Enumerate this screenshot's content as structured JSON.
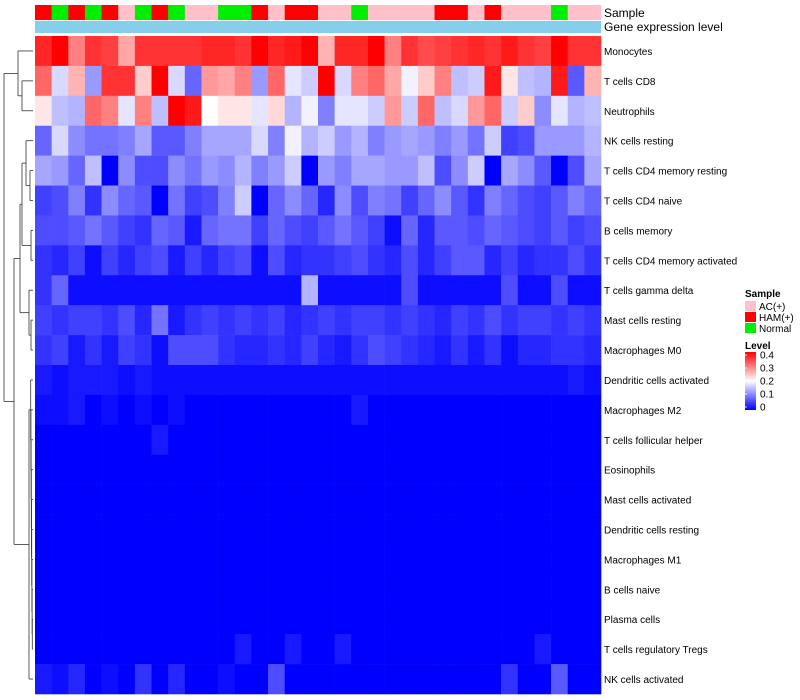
{
  "chart_data": {
    "type": "heatmap",
    "annotation_rows": [
      "Sample",
      "Gene expression level"
    ],
    "sample_groups": [
      "HAM(+)",
      "Normal",
      "HAM(+)",
      "Normal",
      "HAM(+)",
      "AC(+)",
      "Normal",
      "HAM(+)",
      "Normal",
      "AC(+)",
      "AC(+)",
      "Normal",
      "Normal",
      "HAM(+)",
      "AC(+)",
      "HAM(+)",
      "HAM(+)",
      "AC(+)",
      "AC(+)",
      "Normal",
      "AC(+)",
      "AC(+)",
      "AC(+)",
      "AC(+)",
      "HAM(+)",
      "HAM(+)",
      "AC(+)",
      "HAM(+)",
      "AC(+)",
      "AC(+)",
      "AC(+)",
      "Normal",
      "AC(+)",
      "AC(+)"
    ],
    "expression_level_color": "#87CEEB",
    "rows": [
      "Monocytes",
      "T cells CD8",
      "Neutrophils",
      "NK cells resting",
      "T cells CD4 memory resting",
      "T cells CD4 naive",
      "B cells memory",
      "T cells CD4 memory activated",
      "T cells gamma delta",
      "Mast cells resting",
      "Macrophages M0",
      "Dendritic cells activated",
      "Macrophages M2",
      "T cells follicular helper",
      "Eosinophils",
      "Mast cells activated",
      "Dendritic cells resting",
      "Macrophages M1",
      "B cells naive",
      "Plasma cells",
      "T cells regulatory  Tregs",
      "NK cells activated"
    ],
    "values": [
      [
        0.37,
        0.45,
        0.3,
        0.36,
        0.35,
        0.27,
        0.36,
        0.36,
        0.36,
        0.36,
        0.37,
        0.37,
        0.36,
        0.4,
        0.37,
        0.38,
        0.42,
        0.26,
        0.37,
        0.37,
        0.4,
        0.3,
        0.36,
        0.34,
        0.35,
        0.36,
        0.37,
        0.36,
        0.38,
        0.36,
        0.35,
        0.42,
        0.36,
        0.36
      ],
      [
        0.32,
        0.17,
        0.26,
        0.12,
        0.36,
        0.36,
        0.24,
        0.4,
        0.17,
        0.08,
        0.28,
        0.27,
        0.3,
        0.12,
        0.32,
        0.18,
        0.16,
        0.4,
        0.17,
        0.3,
        0.32,
        0.27,
        0.19,
        0.24,
        0.3,
        0.15,
        0.16,
        0.38,
        0.22,
        0.15,
        0.14,
        0.38,
        0.07,
        0.26
      ],
      [
        0.22,
        0.15,
        0.14,
        0.32,
        0.3,
        0.18,
        0.3,
        0.15,
        0.4,
        0.38,
        0.2,
        0.22,
        0.22,
        0.18,
        0.23,
        0.14,
        0.19,
        0.1,
        0.18,
        0.18,
        0.16,
        0.28,
        0.16,
        0.32,
        0.15,
        0.17,
        0.28,
        0.32,
        0.16,
        0.24,
        0.11,
        0.18,
        0.14,
        0.15
      ],
      [
        0.08,
        0.17,
        0.11,
        0.09,
        0.09,
        0.1,
        0.13,
        0.07,
        0.07,
        0.1,
        0.13,
        0.13,
        0.13,
        0.17,
        0.1,
        0.19,
        0.14,
        0.16,
        0.12,
        0.14,
        0.1,
        0.12,
        0.13,
        0.12,
        0.1,
        0.12,
        0.09,
        0.16,
        0.05,
        0.06,
        0.12,
        0.12,
        0.12,
        0.14
      ],
      [
        0.13,
        0.12,
        0.08,
        0.15,
        0.0,
        0.11,
        0.06,
        0.06,
        0.11,
        0.09,
        0.12,
        0.11,
        0.14,
        0.1,
        0.12,
        0.16,
        0.0,
        0.12,
        0.1,
        0.13,
        0.13,
        0.12,
        0.12,
        0.15,
        0.06,
        0.11,
        0.16,
        0.0,
        0.13,
        0.11,
        0.07,
        0.0,
        0.06,
        0.13
      ],
      [
        0.05,
        0.06,
        0.1,
        0.04,
        0.11,
        0.08,
        0.07,
        0.0,
        0.09,
        0.05,
        0.06,
        0.1,
        0.16,
        0.0,
        0.08,
        0.11,
        0.08,
        0.03,
        0.11,
        0.06,
        0.1,
        0.09,
        0.05,
        0.08,
        0.11,
        0.07,
        0.04,
        0.1,
        0.08,
        0.06,
        0.05,
        0.07,
        0.1,
        0.08
      ],
      [
        0.06,
        0.06,
        0.07,
        0.09,
        0.07,
        0.05,
        0.04,
        0.08,
        0.07,
        0.02,
        0.08,
        0.09,
        0.09,
        0.05,
        0.08,
        0.06,
        0.05,
        0.07,
        0.09,
        0.07,
        0.05,
        0.01,
        0.08,
        0.03,
        0.07,
        0.07,
        0.06,
        0.08,
        0.07,
        0.06,
        0.05,
        0.07,
        0.05,
        0.06
      ],
      [
        0.04,
        0.03,
        0.05,
        0.01,
        0.05,
        0.03,
        0.05,
        0.06,
        0.02,
        0.05,
        0.03,
        0.05,
        0.06,
        0.01,
        0.06,
        0.03,
        0.04,
        0.04,
        0.05,
        0.06,
        0.04,
        0.03,
        0.06,
        0.03,
        0.05,
        0.07,
        0.07,
        0.03,
        0.05,
        0.03,
        0.04,
        0.04,
        0.06,
        0.04
      ],
      [
        0.04,
        0.08,
        0.01,
        0.01,
        0.01,
        0.01,
        0.01,
        0.01,
        0.01,
        0.01,
        0.01,
        0.01,
        0.01,
        0.01,
        0.01,
        0.01,
        0.14,
        0.01,
        0.01,
        0.01,
        0.01,
        0.01,
        0.06,
        0.01,
        0.01,
        0.01,
        0.01,
        0.01,
        0.06,
        0.01,
        0.01,
        0.06,
        0.01,
        0.01
      ],
      [
        0.05,
        0.04,
        0.05,
        0.05,
        0.04,
        0.06,
        0.03,
        0.09,
        0.02,
        0.04,
        0.05,
        0.04,
        0.05,
        0.04,
        0.05,
        0.03,
        0.04,
        0.05,
        0.04,
        0.05,
        0.05,
        0.04,
        0.05,
        0.04,
        0.03,
        0.05,
        0.04,
        0.06,
        0.04,
        0.05,
        0.05,
        0.04,
        0.05,
        0.04
      ],
      [
        0.04,
        0.05,
        0.02,
        0.04,
        0.02,
        0.05,
        0.04,
        0.01,
        0.06,
        0.06,
        0.06,
        0.04,
        0.03,
        0.03,
        0.04,
        0.03,
        0.05,
        0.03,
        0.02,
        0.04,
        0.06,
        0.05,
        0.04,
        0.03,
        0.02,
        0.04,
        0.02,
        0.04,
        0.01,
        0.03,
        0.03,
        0.04,
        0.04,
        0.03
      ],
      [
        0.02,
        0.01,
        0.02,
        0.02,
        0.02,
        0.01,
        0.02,
        0.01,
        0.01,
        0.01,
        0.01,
        0.01,
        0.01,
        0.01,
        0.01,
        0.01,
        0.01,
        0.01,
        0.01,
        0.01,
        0.01,
        0.01,
        0.01,
        0.01,
        0.01,
        0.01,
        0.01,
        0.01,
        0.01,
        0.01,
        0.01,
        0.01,
        0.02,
        0.01
      ],
      [
        0.01,
        0.01,
        0.02,
        0.0,
        0.01,
        0.0,
        0.01,
        0.0,
        0.01,
        0.0,
        0.0,
        0.0,
        0.0,
        0.0,
        0.0,
        0.0,
        0.0,
        0.0,
        0.0,
        0.02,
        0.0,
        0.0,
        0.0,
        0.0,
        0.0,
        0.0,
        0.0,
        0.0,
        0.0,
        0.0,
        0.0,
        0.0,
        0.0,
        0.0
      ],
      [
        0.0,
        0.0,
        0.0,
        0.0,
        0.0,
        0.0,
        0.0,
        0.02,
        0.0,
        0.0,
        0.0,
        0.0,
        0.0,
        0.0,
        0.0,
        0.0,
        0.0,
        0.0,
        0.0,
        0.0,
        0.0,
        0.0,
        0.0,
        0.0,
        0.0,
        0.0,
        0.0,
        0.0,
        0.0,
        0.0,
        0.0,
        0.0,
        0.0,
        0.0
      ],
      [
        0.0,
        0.0,
        0.0,
        0.0,
        0.0,
        0.0,
        0.0,
        0.0,
        0.0,
        0.0,
        0.0,
        0.0,
        0.0,
        0.0,
        0.0,
        0.0,
        0.0,
        0.0,
        0.0,
        0.0,
        0.0,
        0.0,
        0.0,
        0.0,
        0.0,
        0.0,
        0.0,
        0.0,
        0.0,
        0.0,
        0.0,
        0.0,
        0.0,
        0.0
      ],
      [
        0.0,
        0.0,
        0.0,
        0.0,
        0.0,
        0.0,
        0.0,
        0.0,
        0.0,
        0.0,
        0.0,
        0.0,
        0.0,
        0.0,
        0.0,
        0.0,
        0.0,
        0.0,
        0.0,
        0.0,
        0.0,
        0.0,
        0.0,
        0.0,
        0.0,
        0.0,
        0.0,
        0.0,
        0.0,
        0.0,
        0.0,
        0.0,
        0.0,
        0.0
      ],
      [
        0.0,
        0.0,
        0.0,
        0.0,
        0.0,
        0.0,
        0.0,
        0.0,
        0.0,
        0.0,
        0.0,
        0.0,
        0.0,
        0.0,
        0.0,
        0.0,
        0.0,
        0.0,
        0.0,
        0.0,
        0.0,
        0.0,
        0.0,
        0.0,
        0.0,
        0.0,
        0.0,
        0.0,
        0.0,
        0.0,
        0.0,
        0.0,
        0.0,
        0.0
      ],
      [
        0.0,
        0.0,
        0.0,
        0.0,
        0.0,
        0.0,
        0.0,
        0.0,
        0.0,
        0.0,
        0.0,
        0.0,
        0.0,
        0.0,
        0.0,
        0.0,
        0.0,
        0.0,
        0.0,
        0.0,
        0.0,
        0.0,
        0.0,
        0.0,
        0.0,
        0.0,
        0.0,
        0.0,
        0.0,
        0.0,
        0.0,
        0.0,
        0.0,
        0.0
      ],
      [
        0.0,
        0.0,
        0.0,
        0.0,
        0.0,
        0.0,
        0.0,
        0.0,
        0.0,
        0.0,
        0.0,
        0.0,
        0.0,
        0.0,
        0.0,
        0.0,
        0.0,
        0.0,
        0.0,
        0.0,
        0.0,
        0.0,
        0.0,
        0.0,
        0.0,
        0.0,
        0.0,
        0.0,
        0.0,
        0.0,
        0.0,
        0.0,
        0.0,
        0.0
      ],
      [
        0.0,
        0.0,
        0.0,
        0.0,
        0.0,
        0.0,
        0.0,
        0.0,
        0.0,
        0.0,
        0.0,
        0.0,
        0.0,
        0.0,
        0.0,
        0.0,
        0.0,
        0.0,
        0.0,
        0.0,
        0.0,
        0.0,
        0.0,
        0.0,
        0.0,
        0.0,
        0.0,
        0.0,
        0.0,
        0.0,
        0.0,
        0.0,
        0.0,
        0.0
      ],
      [
        0.0,
        0.0,
        0.0,
        0.0,
        0.0,
        0.0,
        0.0,
        0.0,
        0.0,
        0.0,
        0.0,
        0.0,
        0.02,
        0.0,
        0.0,
        0.02,
        0.0,
        0.0,
        0.02,
        0.0,
        0.0,
        0.0,
        0.0,
        0.0,
        0.0,
        0.0,
        0.0,
        0.0,
        0.0,
        0.0,
        0.02,
        0.0,
        0.0,
        0.0
      ],
      [
        0.02,
        0.01,
        0.03,
        0.0,
        0.01,
        0.0,
        0.04,
        0.0,
        0.03,
        0.0,
        0.0,
        0.01,
        0.0,
        0.0,
        0.06,
        0.0,
        0.0,
        0.0,
        0.0,
        0.0,
        0.0,
        0.0,
        0.0,
        0.0,
        0.0,
        0.0,
        0.0,
        0.0,
        0.04,
        0.0,
        0.0,
        0.07,
        0.0,
        0.0
      ]
    ],
    "color_scale": {
      "min": 0,
      "mid": 0.2,
      "max": 0.4,
      "low": "#0000FF",
      "midColor": "#FFFFFF",
      "high": "#FF0000"
    },
    "legend": {
      "sample_title": "Sample",
      "sample_entries": [
        {
          "label": "AC(+)",
          "color": "#FFC0CB"
        },
        {
          "label": "HAM(+)",
          "color": "#FF0000"
        },
        {
          "label": "Normal",
          "color": "#00EE00"
        }
      ],
      "level_title": "Level",
      "level_ticks": [
        "0.4",
        "0.3",
        "0.2",
        "0.1",
        "0"
      ],
      "placement": "right"
    },
    "dendrogram": "rows"
  }
}
